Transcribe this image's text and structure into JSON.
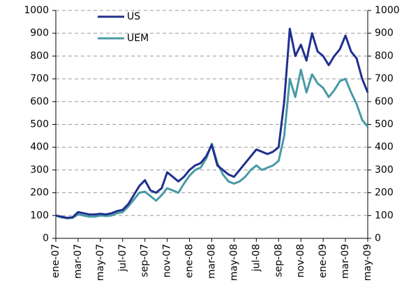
{
  "chart_data": {
    "type": "line",
    "categories": [
      "ene-07",
      null,
      null,
      null,
      "mar-07",
      null,
      null,
      null,
      "may-07",
      null,
      null,
      null,
      "jul-07",
      null,
      null,
      null,
      "sep-07",
      null,
      null,
      null,
      "nov-07",
      null,
      null,
      null,
      "ene-08",
      null,
      null,
      null,
      "mar-08",
      null,
      null,
      null,
      "may-08",
      null,
      null,
      null,
      "jul-08",
      null,
      null,
      null,
      "sep-08",
      null,
      null,
      null,
      "nov-08",
      null,
      null,
      null,
      "ene-09",
      null,
      null,
      null,
      "mar-09",
      null,
      null,
      null,
      "may-09"
    ],
    "series": [
      {
        "name": "US",
        "color": "#1f2f8f",
        "values": [
          100,
          95,
          90,
          92,
          115,
          110,
          105,
          105,
          108,
          105,
          110,
          120,
          125,
          150,
          190,
          230,
          255,
          210,
          200,
          220,
          290,
          270,
          250,
          270,
          300,
          320,
          330,
          360,
          410,
          320,
          300,
          280,
          270,
          300,
          330,
          360,
          390,
          380,
          370,
          380,
          400,
          600,
          920,
          800,
          850,
          780,
          900,
          820,
          800,
          760,
          800,
          830,
          890,
          820,
          790,
          700,
          640
        ]
      },
      {
        "name": "UEM",
        "color": "#4a9aa5",
        "values": [
          100,
          92,
          88,
          90,
          105,
          100,
          95,
          95,
          100,
          98,
          100,
          110,
          115,
          140,
          170,
          200,
          205,
          185,
          165,
          190,
          220,
          210,
          200,
          240,
          275,
          300,
          310,
          350,
          415,
          330,
          280,
          250,
          240,
          250,
          270,
          300,
          320,
          300,
          310,
          320,
          340,
          450,
          700,
          620,
          740,
          640,
          720,
          680,
          660,
          620,
          650,
          690,
          700,
          640,
          590,
          520,
          490
        ]
      }
    ],
    "ylim": [
      0,
      1000
    ],
    "yticks": [
      0,
      100,
      200,
      300,
      400,
      500,
      600,
      700,
      800,
      900,
      1000
    ],
    "y2lim": [
      0,
      1000
    ],
    "y2ticks": [
      0,
      100,
      200,
      300,
      400,
      500,
      600,
      700,
      800,
      900,
      1000
    ],
    "grid": true
  }
}
